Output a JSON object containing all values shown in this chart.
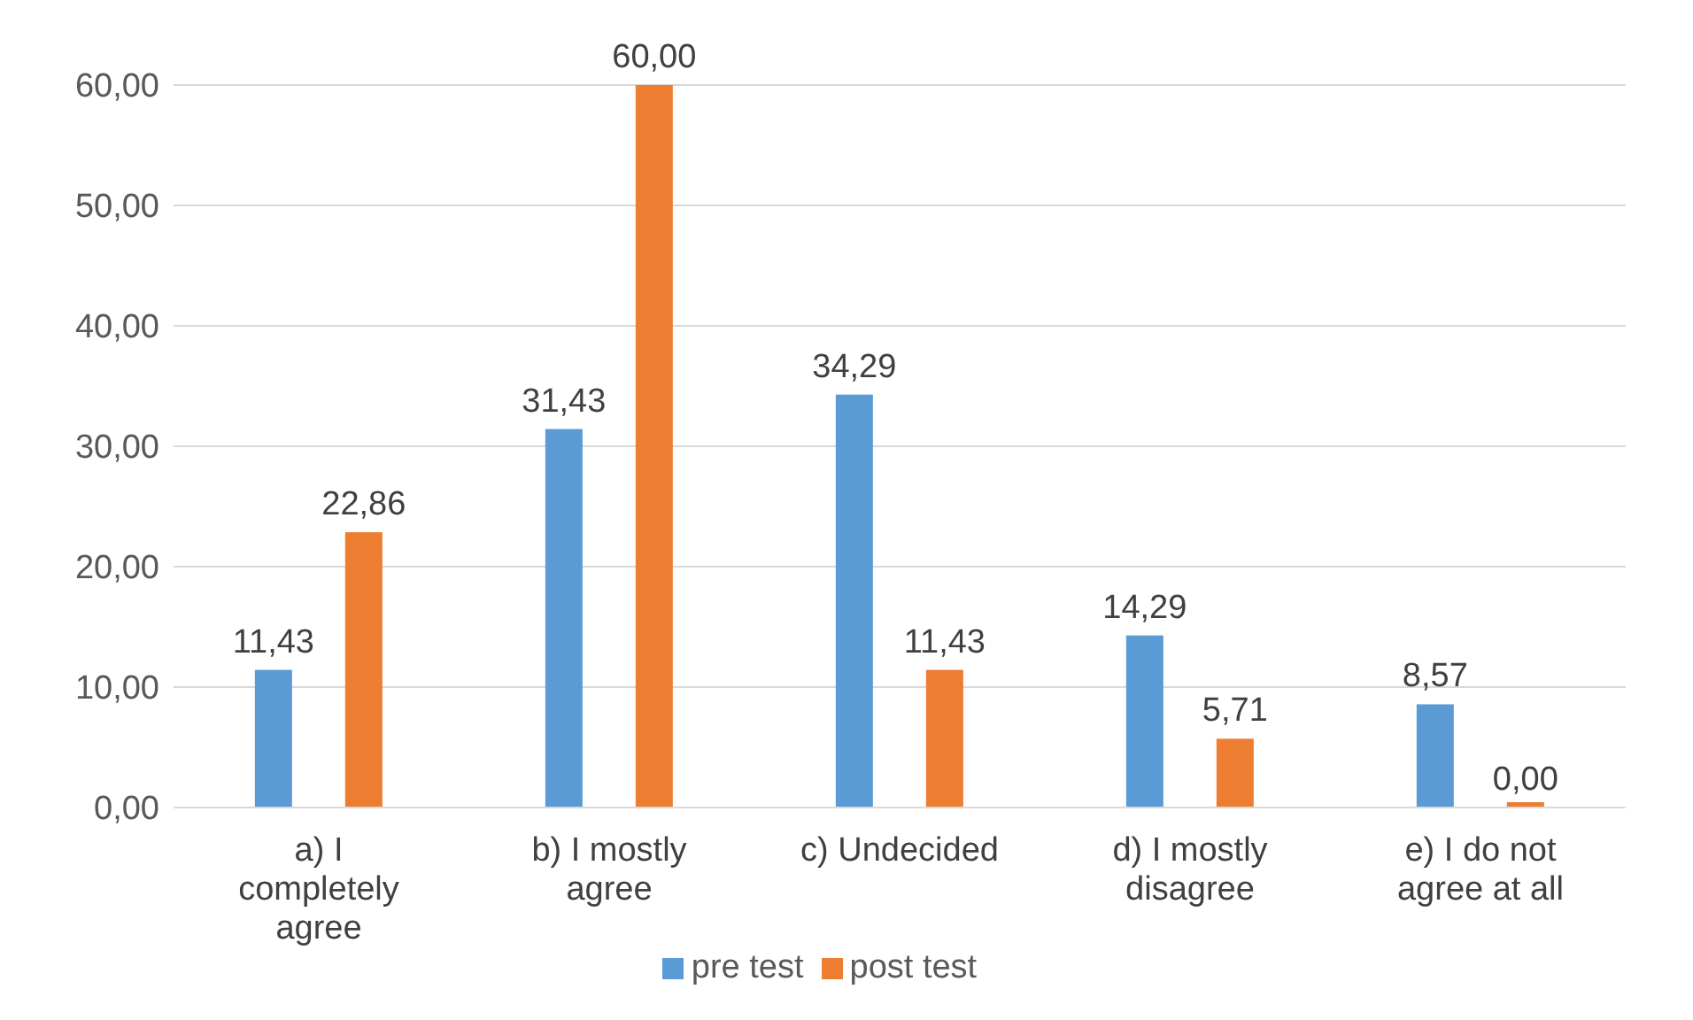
{
  "chart_data": {
    "type": "bar",
    "categories": [
      "a) I completely agree",
      "b) I mostly agree",
      "c) Undecided",
      "d) I mostly disagree",
      "e) I do not agree at all"
    ],
    "series": [
      {
        "name": "pre test",
        "color": "#5b9bd5",
        "values": [
          11.43,
          31.43,
          34.29,
          14.29,
          8.57
        ],
        "value_labels": [
          "11,43",
          "31,43",
          "34,29",
          "14,29",
          "8,57"
        ]
      },
      {
        "name": "post test",
        "color": "#ed7d31",
        "values": [
          22.86,
          60.0,
          11.43,
          5.71,
          0.0
        ],
        "value_labels": [
          "22,86",
          "60,00",
          "11,43",
          "5,71",
          "0,00"
        ]
      }
    ],
    "ylim": [
      0,
      60
    ],
    "yticks": [
      {
        "value": 0,
        "label": "0,00"
      },
      {
        "value": 10,
        "label": "10,00"
      },
      {
        "value": 20,
        "label": "20,00"
      },
      {
        "value": 30,
        "label": "30,00"
      },
      {
        "value": 40,
        "label": "40,00"
      },
      {
        "value": 50,
        "label": "50,00"
      },
      {
        "value": 60,
        "label": "60,00"
      }
    ],
    "grid": "y",
    "legend": "bottom"
  }
}
